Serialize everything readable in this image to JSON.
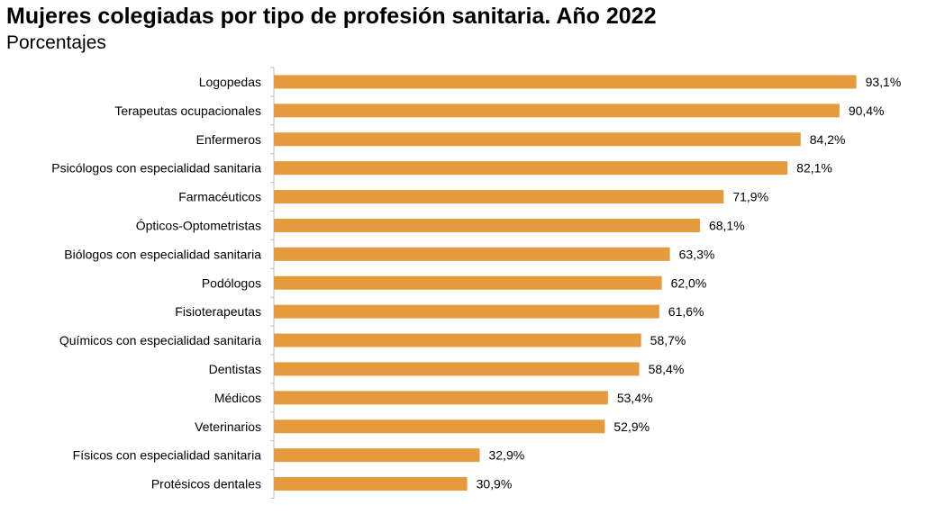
{
  "title": "Mujeres colegiadas por tipo de profesión sanitaria. Año 2022",
  "subtitle": "Porcentajes",
  "colors": {
    "bar": "#E59A3C",
    "axis": "#BFBFBF"
  },
  "chart_data": {
    "type": "bar",
    "orientation": "horizontal",
    "title": "Mujeres colegiadas por tipo de profesión sanitaria. Año 2022",
    "subtitle": "Porcentajes",
    "xlim": [
      0,
      100
    ],
    "grid": false,
    "categories": [
      "Logopedas",
      "Terapeutas ocupacionales",
      "Enfermeros",
      "Psicólogos con especialidad sanitaria",
      "Farmacéuticos",
      "Ópticos-Optometristas",
      "Biólogos con especialidad sanitaria",
      "Podólogos",
      "Fisioterapeutas",
      "Químicos con especialidad sanitaria",
      "Dentistas",
      "Médicos",
      "Veterinarios",
      "Físicos con especialidad sanitaria",
      "Protésicos dentales"
    ],
    "values": [
      93.1,
      90.4,
      84.2,
      82.1,
      71.9,
      68.1,
      63.3,
      62.0,
      61.6,
      58.7,
      58.4,
      53.4,
      52.9,
      32.9,
      30.9
    ],
    "value_labels": [
      "93,1%",
      "90,4%",
      "84,2%",
      "82,1%",
      "71,9%",
      "68,1%",
      "63,3%",
      "62,0%",
      "61,6%",
      "58,7%",
      "58,4%",
      "53,4%",
      "52,9%",
      "32,9%",
      "30,9%"
    ]
  }
}
